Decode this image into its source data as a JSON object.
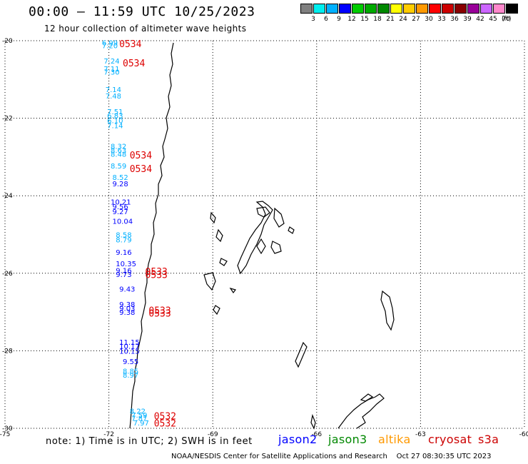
{
  "header": {
    "title": "00:00 – 11:59 UTC 10/25/2023",
    "subtitle": "12 hour collection of altimeter wave heights"
  },
  "legend": {
    "colors": [
      "#808080",
      "#00eeee",
      "#00b0ff",
      "#0000ff",
      "#00cc00",
      "#00aa00",
      "#008800",
      "#ffff00",
      "#ffcc00",
      "#ff9900",
      "#ff0000",
      "#cc0000",
      "#880000",
      "#990099",
      "#cc66ff",
      "#ff88cc",
      "#000000"
    ],
    "labels": [
      "3",
      "6",
      "9",
      "12",
      "15",
      "18",
      "21",
      "24",
      "27",
      "30",
      "33",
      "36",
      "39",
      "42",
      "45",
      "70"
    ],
    "unit": "(ft)"
  },
  "map": {
    "lat_labels": [
      "-20",
      "-22",
      "-24",
      "-26",
      "-28",
      "-30"
    ],
    "lon_labels": [
      "-75",
      "-72",
      "-69",
      "-66",
      "-63",
      "-60"
    ],
    "lat_values": [
      -20,
      -22,
      -24,
      -26,
      -28,
      -30
    ],
    "lon_values": [
      -75,
      -72,
      -69,
      -66,
      -63,
      -60
    ],
    "extent": {
      "lon_min": -75,
      "lon_max": -60,
      "lat_min": -30,
      "lat_max": -20
    }
  },
  "observations": [
    {
      "lon": -72.2,
      "lat": -20.05,
      "value": "6.99",
      "color": "#00b0ff"
    },
    {
      "lon": -72.2,
      "lat": -20.12,
      "value": "7.20",
      "color": "#00b0ff"
    },
    {
      "lon": -72.15,
      "lat": -20.52,
      "value": "7.24",
      "color": "#00b0ff"
    },
    {
      "lon": -72.15,
      "lat": -20.72,
      "value": "7.11",
      "color": "#00b0ff"
    },
    {
      "lon": -72.15,
      "lat": -20.8,
      "value": "7.30",
      "color": "#00b0ff"
    },
    {
      "lon": -72.1,
      "lat": -21.25,
      "value": "7.14",
      "color": "#00b0ff"
    },
    {
      "lon": -72.1,
      "lat": -21.42,
      "value": "7.48",
      "color": "#00b0ff"
    },
    {
      "lon": -72.05,
      "lat": -21.82,
      "value": "7.51",
      "color": "#00b0ff"
    },
    {
      "lon": -72.05,
      "lat": -21.92,
      "value": "6.83",
      "color": "#00b0ff"
    },
    {
      "lon": -72.05,
      "lat": -22.05,
      "value": "6.10",
      "color": "#00b0ff"
    },
    {
      "lon": -72.05,
      "lat": -22.18,
      "value": "7.14",
      "color": "#00b0ff"
    },
    {
      "lon": -71.95,
      "lat": -22.72,
      "value": "8.32",
      "color": "#00b0ff"
    },
    {
      "lon": -71.95,
      "lat": -22.82,
      "value": "8.63",
      "color": "#00b0ff"
    },
    {
      "lon": -71.95,
      "lat": -22.92,
      "value": "8.48",
      "color": "#00b0ff"
    },
    {
      "lon": -71.95,
      "lat": -23.22,
      "value": "8.59",
      "color": "#00b0ff"
    },
    {
      "lon": -71.9,
      "lat": -23.52,
      "value": "8.52",
      "color": "#00b0ff"
    },
    {
      "lon": -71.9,
      "lat": -23.68,
      "value": "9.28",
      "color": "#0000ff"
    },
    {
      "lon": -71.95,
      "lat": -24.15,
      "value": "10.21",
      "color": "#0000ff"
    },
    {
      "lon": -71.9,
      "lat": -24.27,
      "value": "9.56",
      "color": "#0000ff"
    },
    {
      "lon": -71.9,
      "lat": -24.4,
      "value": "9.27",
      "color": "#0000ff"
    },
    {
      "lon": -71.9,
      "lat": -24.65,
      "value": "10.04",
      "color": "#0000ff"
    },
    {
      "lon": -71.8,
      "lat": -25.0,
      "value": "8.58",
      "color": "#00b0ff"
    },
    {
      "lon": -71.8,
      "lat": -25.13,
      "value": "8.79",
      "color": "#00b0ff"
    },
    {
      "lon": -71.8,
      "lat": -25.45,
      "value": "9.16",
      "color": "#0000ff"
    },
    {
      "lon": -71.8,
      "lat": -25.75,
      "value": "10.35",
      "color": "#0000ff"
    },
    {
      "lon": -71.8,
      "lat": -25.92,
      "value": "9.16",
      "color": "#0000ff"
    },
    {
      "lon": -71.8,
      "lat": -26.02,
      "value": "9.73",
      "color": "#0000ff"
    },
    {
      "lon": -71.7,
      "lat": -26.4,
      "value": "9.43",
      "color": "#0000ff"
    },
    {
      "lon": -71.7,
      "lat": -26.8,
      "value": "9.38",
      "color": "#0000ff"
    },
    {
      "lon": -71.7,
      "lat": -26.9,
      "value": "9.03",
      "color": "#0000ff"
    },
    {
      "lon": -71.7,
      "lat": -27.0,
      "value": "9.38",
      "color": "#0000ff"
    },
    {
      "lon": -71.7,
      "lat": -27.77,
      "value": "11.15",
      "color": "#0000ff"
    },
    {
      "lon": -71.7,
      "lat": -27.87,
      "value": "10.17",
      "color": "#0000ff"
    },
    {
      "lon": -71.7,
      "lat": -28.0,
      "value": "10.15",
      "color": "#0000ff"
    },
    {
      "lon": -71.6,
      "lat": -28.27,
      "value": "9.55",
      "color": "#0000ff"
    },
    {
      "lon": -71.6,
      "lat": -28.52,
      "value": "8.85",
      "color": "#00b0ff"
    },
    {
      "lon": -71.6,
      "lat": -28.62,
      "value": "8.97",
      "color": "#00b0ff"
    },
    {
      "lon": -71.4,
      "lat": -29.55,
      "value": "8.22",
      "color": "#00b0ff"
    },
    {
      "lon": -71.35,
      "lat": -29.65,
      "value": "7.59",
      "color": "#00b0ff"
    },
    {
      "lon": -71.35,
      "lat": -29.73,
      "value": "7.87",
      "color": "#00b0ff"
    },
    {
      "lon": -71.3,
      "lat": -29.85,
      "value": "7.97",
      "color": "#00b0ff"
    }
  ],
  "time_labels": [
    {
      "lon": -71.7,
      "lat": -20.07,
      "value": "0534"
    },
    {
      "lon": -71.6,
      "lat": -20.57,
      "value": "0534"
    },
    {
      "lon": -71.4,
      "lat": -22.95,
      "value": "0534"
    },
    {
      "lon": -71.4,
      "lat": -23.3,
      "value": "0534"
    },
    {
      "lon": -70.95,
      "lat": -25.95,
      "value": "0533"
    },
    {
      "lon": -70.95,
      "lat": -26.03,
      "value": "0533"
    },
    {
      "lon": -70.85,
      "lat": -26.95,
      "value": "0533"
    },
    {
      "lon": -70.85,
      "lat": -27.03,
      "value": "0533"
    },
    {
      "lon": -70.7,
      "lat": -29.68,
      "value": "0532"
    },
    {
      "lon": -70.7,
      "lat": -29.86,
      "value": "0532"
    }
  ],
  "footer": {
    "note": "note:  1) Time is in UTC;  2) SWH is in feet",
    "satellites": [
      {
        "name": "jason2",
        "color": "#0000ff"
      },
      {
        "name": "jason3",
        "color": "#008800"
      },
      {
        "name": "altika",
        "color": "#ff9900"
      },
      {
        "name": "cryosat",
        "color": "#cc0000"
      },
      {
        "name": "s3a",
        "color": "#cc0000"
      }
    ],
    "credit": "NOAA/NESDIS Center for Satellite Applications and Research    Oct 27 08:30:35 UTC 2023"
  }
}
